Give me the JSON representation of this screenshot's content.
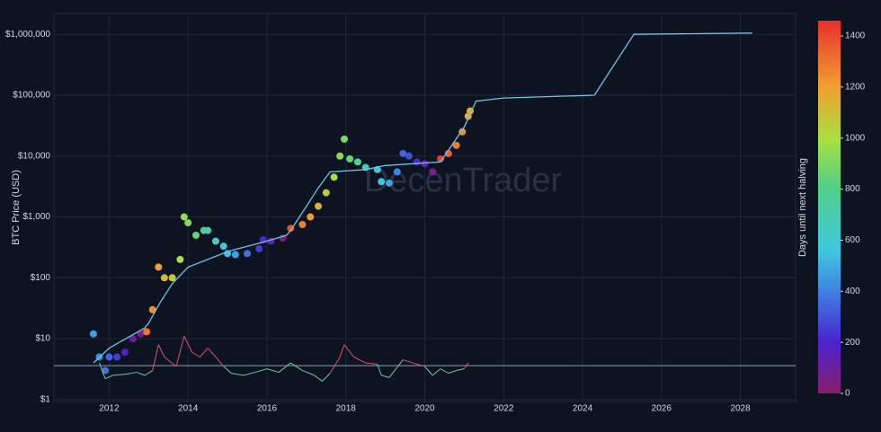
{
  "chart_data": {
    "type": "scatter",
    "y_label": "BTC Price (USD)",
    "colorbar_label": "Days until next halving",
    "watermark": "DecenTrader",
    "log_y": true,
    "grid": true,
    "xlim": [
      2010.6,
      2029.4
    ],
    "xticks": [
      2012,
      2014,
      2016,
      2018,
      2020,
      2022,
      2024,
      2026,
      2028
    ],
    "ylim": [
      0.93,
      2200000
    ],
    "yticks": [
      {
        "value": 1,
        "label": "$1"
      },
      {
        "value": 10,
        "label": "$10"
      },
      {
        "value": 100,
        "label": "$100"
      },
      {
        "value": 1000,
        "label": "$1,000"
      },
      {
        "value": 10000,
        "label": "$10,000"
      },
      {
        "value": 100000,
        "label": "$100,000"
      },
      {
        "value": 1000000,
        "label": "$1,000,000"
      }
    ],
    "clim": [
      0,
      1460
    ],
    "cticks": [
      0,
      200,
      400,
      600,
      800,
      1000,
      1200,
      1400
    ],
    "colorscale": [
      [
        0,
        "#8a1c6d"
      ],
      [
        0.14,
        "#4a24d0"
      ],
      [
        0.27,
        "#3f7fe0"
      ],
      [
        0.38,
        "#3fc6e0"
      ],
      [
        0.55,
        "#4fd08a"
      ],
      [
        0.68,
        "#a8e040"
      ],
      [
        0.82,
        "#f0a030"
      ],
      [
        1,
        "#e8302a"
      ]
    ],
    "reference_line": {
      "value": 3.6,
      "color": "#7fa6b6"
    },
    "series": [
      {
        "type": "scatter",
        "x": [
          2011.6,
          2011.75,
          2011.9,
          2012.0,
          2012.2,
          2012.4,
          2012.6,
          2012.8,
          2012.95,
          2013.1,
          2013.25,
          2013.4,
          2013.6,
          2013.8,
          2013.9,
          2014.0,
          2014.2,
          2014.4,
          2014.5,
          2014.7,
          2014.9,
          2015.0,
          2015.2,
          2015.5,
          2015.8,
          2015.9,
          2016.1,
          2016.4,
          2016.6,
          2016.9,
          2017.1,
          2017.3,
          2017.5,
          2017.7,
          2017.85,
          2017.96,
          2018.1,
          2018.3,
          2018.5,
          2018.8,
          2018.9,
          2019.1,
          2019.3,
          2019.45,
          2019.6,
          2019.8,
          2020.0,
          2020.2,
          2020.4,
          2020.6,
          2020.8,
          2020.95,
          2021.1,
          2021.15
        ],
        "values": [
          12,
          5,
          3,
          5,
          5,
          6,
          10,
          12,
          13,
          30,
          150,
          100,
          100,
          200,
          1000,
          800,
          500,
          600,
          600,
          400,
          330,
          250,
          240,
          250,
          300,
          420,
          400,
          450,
          650,
          750,
          1000,
          1500,
          2500,
          4500,
          10000,
          19000,
          9000,
          8000,
          6500,
          6000,
          3800,
          3600,
          5500,
          11000,
          10000,
          8000,
          7500,
          5500,
          9000,
          11000,
          15000,
          25000,
          45000,
          55000
        ],
        "days": [
          475,
          420,
          365,
          330,
          255,
          180,
          110,
          35,
          1300,
          1240,
          1190,
          1130,
          1060,
          990,
          950,
          910,
          840,
          765,
          730,
          655,
          585,
          545,
          475,
          365,
          255,
          220,
          145,
          35,
          1390,
          1280,
          1205,
          1130,
          1060,
          985,
          930,
          890,
          840,
          765,
          695,
          585,
          550,
          475,
          400,
          345,
          290,
          220,
          145,
          75,
          1425,
          1350,
          1280,
          1225,
          1170,
          1150
        ]
      },
      {
        "type": "line",
        "color": "#6ec3e4",
        "x": [
          2011.6,
          2012.0,
          2012.9,
          2013.0,
          2013.3,
          2013.6,
          2014.0,
          2014.5,
          2015.0,
          2015.5,
          2016.0,
          2016.5,
          2016.6,
          2017.0,
          2017.3,
          2017.6,
          2018.5,
          2019.0,
          2020.4,
          2021.0,
          2021.3,
          2022.0,
          2024.3,
          2025.3,
          2028.3
        ],
        "values": [
          4,
          7,
          15,
          18,
          40,
          80,
          150,
          200,
          270,
          330,
          400,
          500,
          600,
          1500,
          3000,
          5500,
          6000,
          7000,
          8000,
          30000,
          80000,
          90000,
          100000,
          1000000,
          1050000
        ]
      },
      {
        "type": "threshold_line",
        "color_above": "#d9546b",
        "color_below": "#6fc7a0",
        "x": [
          2011.75,
          2011.9,
          2012.1,
          2012.4,
          2012.7,
          2012.9,
          2013.1,
          2013.25,
          2013.4,
          2013.7,
          2013.9,
          2014.1,
          2014.3,
          2014.5,
          2014.7,
          2014.9,
          2015.1,
          2015.4,
          2015.7,
          2016.0,
          2016.3,
          2016.6,
          2016.9,
          2017.2,
          2017.4,
          2017.6,
          2017.85,
          2017.96,
          2018.2,
          2018.5,
          2018.8,
          2018.9,
          2019.1,
          2019.45,
          2019.7,
          2020.0,
          2020.2,
          2020.4,
          2020.6,
          2020.8,
          2021.0,
          2021.1
        ],
        "values": [
          4,
          2.2,
          2.5,
          2.6,
          2.8,
          2.5,
          3,
          8,
          5,
          3.5,
          11,
          6,
          5,
          7,
          5,
          3.5,
          2.7,
          2.5,
          2.8,
          3.2,
          2.8,
          4,
          3,
          2.5,
          2.0,
          2.7,
          5,
          8,
          5,
          4,
          3.8,
          2.5,
          2.3,
          4.5,
          4,
          3.5,
          2.5,
          3.2,
          2.7,
          3.0,
          3.2,
          4
        ]
      }
    ]
  }
}
